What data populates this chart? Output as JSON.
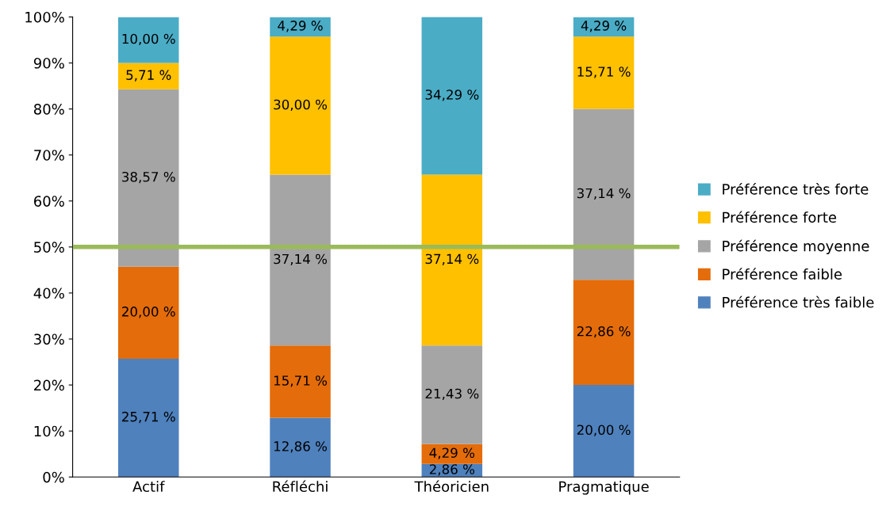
{
  "chart_data": {
    "type": "bar",
    "stacked": true,
    "categories": [
      "Actif",
      "Réfléchi",
      "Théoricien",
      "Pragmatique"
    ],
    "series": [
      {
        "name": "Préférence très faible",
        "color": "#4f81bd",
        "values": [
          25.71,
          12.86,
          2.86,
          20.0
        ],
        "value_labels": [
          "25,71 %",
          "12,86 %",
          "2,86 %",
          "20,00 %"
        ]
      },
      {
        "name": "Préférence faible",
        "color": "#e46c0a",
        "values": [
          20.0,
          15.71,
          4.29,
          22.86
        ],
        "value_labels": [
          "20,00 %",
          "15,71 %",
          "4,29 %",
          "22,86 %"
        ]
      },
      {
        "name": "Préférence moyenne",
        "color": "#a5a5a5",
        "values": [
          38.57,
          37.14,
          21.43,
          37.14
        ],
        "value_labels": [
          "38,57 %",
          "37,14 %",
          "21,43 %",
          "37,14 %"
        ]
      },
      {
        "name": "Préférence forte",
        "color": "#ffc000",
        "values": [
          5.71,
          30.0,
          37.14,
          15.71
        ],
        "value_labels": [
          "5,71 %",
          "30,00 %",
          "37,14 %",
          "15,71 %"
        ]
      },
      {
        "name": "Préférence très forte",
        "color": "#4bacc6",
        "values": [
          10.0,
          4.29,
          34.29,
          4.29
        ],
        "value_labels": [
          "10,00 %",
          "4,29 %",
          "34,29 %",
          "4,29 %"
        ]
      }
    ],
    "ylim": [
      0,
      100
    ],
    "yticks": [
      {
        "value": 0,
        "label": "0%"
      },
      {
        "value": 10,
        "label": "10%"
      },
      {
        "value": 20,
        "label": "20%"
      },
      {
        "value": 30,
        "label": "30%"
      },
      {
        "value": 40,
        "label": "40%"
      },
      {
        "value": 50,
        "label": "50%"
      },
      {
        "value": 60,
        "label": "60%"
      },
      {
        "value": 70,
        "label": "70%"
      },
      {
        "value": 80,
        "label": "80%"
      },
      {
        "value": 90,
        "label": "90%"
      },
      {
        "value": 100,
        "label": "100%"
      }
    ],
    "ref_lines": [
      {
        "axis": "y",
        "value": 50,
        "color": "#9bbb59",
        "line_style": "solid"
      }
    ],
    "grid": false,
    "legend": "right"
  }
}
